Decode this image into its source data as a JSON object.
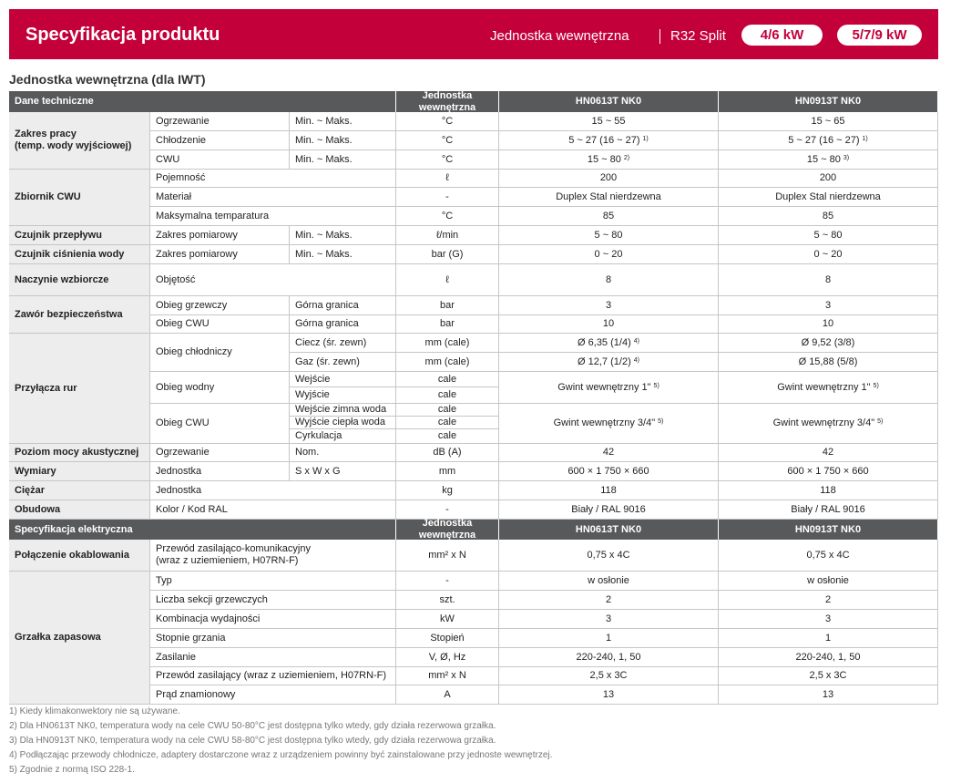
{
  "header": {
    "title": "Specyfikacja produktu",
    "subtitle": "Jednostka wewnętrzna",
    "series": "R32 Split",
    "badges": [
      "4/6 kW",
      "5/7/9 kW"
    ]
  },
  "section_title": "Jednostka wewnętrzna (dla IWT)",
  "table": {
    "head1": [
      "Dane techniczne",
      "Jednostka wewnętrzna",
      "HN0613T NK0",
      "HN0913T NK0"
    ],
    "rows": [
      [
        "Zakres pracy\n(temp. wody wyjściowej)",
        "Ogrzewanie",
        "Min. ~ Maks.",
        "°C",
        "15 ~ 55",
        "15 ~ 65"
      ],
      [
        "Chłodzenie",
        "Min. ~ Maks.",
        "°C",
        {
          "text": "5 ~ 27 (16 ~ 27)",
          "sup": "1)"
        },
        {
          "text": "5 ~ 27 (16 ~ 27)",
          "sup": "1)"
        }
      ],
      [
        "CWU",
        "Min. ~ Maks.",
        "°C",
        {
          "text": "15 ~ 80",
          "sup": "2)"
        },
        {
          "text": "15 ~ 80",
          "sup": "3)"
        }
      ],
      [
        "Zbiornik CWU",
        "Pojemność",
        "ℓ",
        "200",
        "200"
      ],
      [
        "Materiał",
        "-",
        "Duplex Stal nierdzewna",
        "Duplex Stal nierdzewna"
      ],
      [
        "Maksymalna temparatura",
        "°C",
        "85",
        "85"
      ],
      [
        "Czujnik przepływu",
        "Zakres pomiarowy",
        "Min. ~ Maks.",
        "ℓ/min",
        "5 ~ 80",
        "5 ~ 80"
      ],
      [
        "Czujnik ciśnienia wody",
        "Zakres pomiarowy",
        "Min. ~ Maks.",
        "bar (G)",
        "0 ~ 20",
        "0 ~ 20"
      ],
      [
        "Naczynie wzbiorcze",
        "Objętość",
        "ℓ",
        "8",
        "8"
      ],
      [
        "Zawór bezpieczeństwa",
        "Obieg grzewczy",
        "Górna granica",
        "bar",
        "3",
        "3"
      ],
      [
        "Obieg CWU",
        "Górna granica",
        "bar",
        "10",
        "10"
      ],
      [
        "Przyłącza rur",
        "Obieg chłodniczy",
        "Ciecz (śr. zewn)",
        "mm (cale)",
        {
          "text": "Ø 6,35 (1/4)",
          "sup": "4)"
        },
        "Ø 9,52 (3/8)"
      ],
      [
        "Gaz (śr. zewn)",
        "mm (cale)",
        {
          "text": "Ø 12,7 (1/2)",
          "sup": "4)"
        },
        "Ø 15,88 (5/8)"
      ],
      [
        "Obieg wodny",
        "Wejście",
        "cale",
        {
          "text": "Gwint wewnętrzny 1\"",
          "sup": "5)"
        },
        {
          "text": "Gwint wewnętrzny 1\"",
          "sup": "5)"
        }
      ],
      [
        "Wyjście",
        "cale"
      ],
      [
        "Obieg CWU",
        "Wejście zimna woda",
        "cale",
        {
          "text": "Gwint wewnętrzny 3/4\"",
          "sup": "5)"
        },
        {
          "text": "Gwint wewnętrzny 3/4\"",
          "sup": "5)"
        }
      ],
      [
        "Wyjście ciepła woda",
        "cale"
      ],
      [
        "Cyrkulacja",
        "cale"
      ],
      [
        "Poziom mocy akustycznej",
        "Ogrzewanie",
        "Nom.",
        "dB (A)",
        "42",
        "42"
      ],
      [
        "Wymiary",
        "Jednostka",
        "S x W x G",
        "mm",
        "600 × 1 750 × 660",
        "600 × 1 750 × 660"
      ],
      [
        "Ciężar",
        "Jednostka",
        "kg",
        "118",
        "118"
      ],
      [
        "Obudowa",
        "Kolor / Kod RAL",
        "-",
        "Biały / RAL 9016",
        "Biały / RAL 9016"
      ]
    ],
    "head2": [
      "Specyfikacja elektryczna",
      "Jednostka wewnętrzna",
      "HN0613T NK0",
      "HN0913T NK0"
    ],
    "rows2": [
      [
        "Połączenie okablowania",
        "Przewód zasilająco-komunikacyjny\n(wraz z uziemieniem, H07RN-F)",
        "mm² x N",
        "0,75 x 4C",
        "0,75 x 4C"
      ],
      [
        "Grzałka zapasowa",
        "Typ",
        "-",
        "w osłonie",
        "w osłonie"
      ],
      [
        "Liczba sekcji grzewczych",
        "szt.",
        "2",
        "2"
      ],
      [
        "Kombinacja wydajności",
        "kW",
        "3",
        "3"
      ],
      [
        "Stopnie grzania",
        "Stopień",
        "1",
        "1"
      ],
      [
        "Zasilanie",
        "V, Ø, Hz",
        "220-240, 1, 50",
        "220-240, 1, 50"
      ],
      [
        "Przewód zasilający (wraz z uziemieniem, H07RN-F)",
        "mm² x N",
        "2,5 x 3C",
        "2,5 x 3C"
      ],
      [
        "Prąd znamionowy",
        "A",
        "13",
        "13"
      ]
    ]
  },
  "footnotes": [
    "1) Kiedy klimakonwektory nie są używane.",
    "2) Dla HN0613T NK0, temperatura wody na celе CWU 50-80°C jest dostępna tylko wtedy, gdy działa rezerwowa grzałka.",
    "3) Dla HN0913T NK0, temperatura wody na cele CWU 58-80°C jest dostępna tylko wtedy, gdy działa rezerwowa grzałka.",
    "4) Podłączając przewody chłodnicze, adaptery dostarczone wraz z urządzeniem powinny być zainstalowane przy jednoste wewnętrzej.",
    "5) Zgodnie z normą ISO 228-1."
  ]
}
